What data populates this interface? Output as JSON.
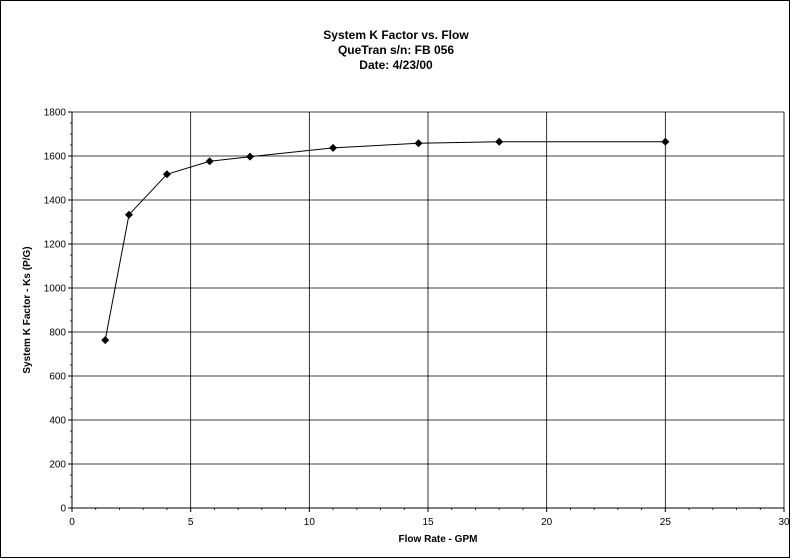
{
  "chart_data": {
    "type": "scatter",
    "title": "System K Factor vs. Flow",
    "subtitle_lines": [
      "QueTran s/n: FB 056",
      "Date: 4/23/00"
    ],
    "xlabel": "Flow Rate - GPM",
    "ylabel": "System K Factor - Ks (P/G)",
    "xlim": [
      0,
      30
    ],
    "ylim": [
      0,
      1800
    ],
    "x_ticks": [
      0,
      5,
      10,
      15,
      20,
      25,
      30
    ],
    "y_ticks": [
      0,
      200,
      400,
      600,
      800,
      1000,
      1200,
      1400,
      1600,
      1800
    ],
    "x_gridlines": true,
    "y_gridlines": true,
    "marker": "diamond",
    "line_color": "#000000",
    "series": [
      {
        "x": [
          1.4,
          2.4,
          4.0,
          5.8,
          7.5,
          11.0,
          14.6,
          18.0,
          25.0
        ],
        "y": [
          763,
          1333,
          1517,
          1576,
          1597,
          1637,
          1658,
          1665,
          1665
        ]
      }
    ]
  }
}
